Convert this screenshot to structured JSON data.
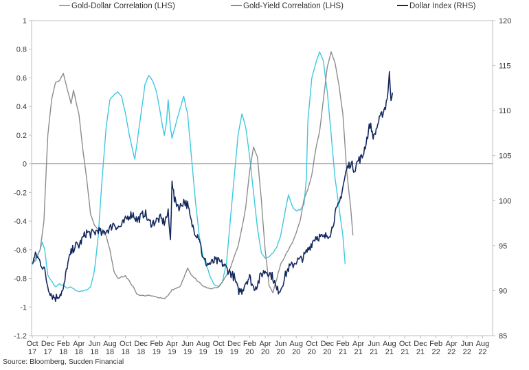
{
  "chart_data": {
    "type": "line",
    "source": "Source: Bloomberg, Sucden Financial",
    "x_labels": [
      [
        "Oct",
        "17"
      ],
      [
        "Dec",
        "17"
      ],
      [
        "Feb",
        "18"
      ],
      [
        "Apr",
        "18"
      ],
      [
        "Jun",
        "18"
      ],
      [
        "Aug",
        "18"
      ],
      [
        "Oct",
        "18"
      ],
      [
        "Dec",
        "18"
      ],
      [
        "Feb",
        "19"
      ],
      [
        "Apr",
        "19"
      ],
      [
        "Jun",
        "19"
      ],
      [
        "Aug",
        "19"
      ],
      [
        "Oct",
        "19"
      ],
      [
        "Dec",
        "19"
      ],
      [
        "Feb",
        "20"
      ],
      [
        "Apr",
        "20"
      ],
      [
        "Jun",
        "20"
      ],
      [
        "Aug",
        "20"
      ],
      [
        "Oct",
        "20"
      ],
      [
        "Dec",
        "20"
      ],
      [
        "Feb",
        "21"
      ],
      [
        "Apr",
        "21"
      ],
      [
        "Jun",
        "21"
      ],
      [
        "Aug",
        "21"
      ],
      [
        "Oct",
        "21"
      ],
      [
        "Dec",
        "21"
      ],
      [
        "Feb",
        "22"
      ],
      [
        "Apr",
        "22"
      ],
      [
        "Jun",
        "22"
      ],
      [
        "Aug",
        "22"
      ]
    ],
    "left_axis": {
      "ylim": [
        -1.2,
        1
      ],
      "ticks": [
        "-1.2",
        "-1",
        "-0.8",
        "-0.6",
        "-0.4",
        "-0.2",
        "0",
        "0.2",
        "0.4",
        "0.6",
        "0.8",
        "1"
      ]
    },
    "right_axis": {
      "ylim": [
        85,
        120
      ],
      "ticks": [
        "85",
        "90",
        "95",
        "100",
        "105",
        "110",
        "115",
        "120"
      ]
    },
    "series": [
      {
        "name": "Gold-Dollar Correlation (LHS)",
        "axis": "left",
        "color": "#3ec8e0",
        "points": [
          [
            0,
            -0.7
          ],
          [
            0.5,
            -0.67
          ],
          [
            1,
            -0.6
          ],
          [
            1.3,
            -0.55
          ],
          [
            1.6,
            -0.6
          ],
          [
            2,
            -0.78
          ],
          [
            2.5,
            -0.82
          ],
          [
            3,
            -0.86
          ],
          [
            3.5,
            -0.84
          ],
          [
            4,
            -0.85
          ],
          [
            4.5,
            -0.87
          ],
          [
            5,
            -0.86
          ],
          [
            5.5,
            -0.88
          ],
          [
            6,
            -0.89
          ],
          [
            6.5,
            -0.89
          ],
          [
            7,
            -0.88
          ],
          [
            7.5,
            -0.86
          ],
          [
            8,
            -0.75
          ],
          [
            8.5,
            -0.5
          ],
          [
            9,
            -0.1
          ],
          [
            9.5,
            0.25
          ],
          [
            10,
            0.45
          ],
          [
            10.5,
            0.48
          ],
          [
            11,
            0.5
          ],
          [
            11.5,
            0.47
          ],
          [
            12,
            0.35
          ],
          [
            12.5,
            0.2
          ],
          [
            13,
            0.08
          ],
          [
            13.2,
            0.03
          ],
          [
            13.5,
            0.15
          ],
          [
            14,
            0.35
          ],
          [
            14.5,
            0.55
          ],
          [
            15,
            0.62
          ],
          [
            15.5,
            0.58
          ],
          [
            16,
            0.5
          ],
          [
            16.5,
            0.35
          ],
          [
            17,
            0.2
          ],
          [
            17.3,
            0.3
          ],
          [
            17.5,
            0.45
          ],
          [
            17.8,
            0.25
          ],
          [
            18,
            0.18
          ],
          [
            18.5,
            0.28
          ],
          [
            19,
            0.38
          ],
          [
            19.5,
            0.47
          ],
          [
            20,
            0.35
          ],
          [
            20.5,
            0.05
          ],
          [
            21,
            -0.25
          ],
          [
            21.5,
            -0.5
          ],
          [
            22,
            -0.65
          ],
          [
            22.5,
            -0.72
          ],
          [
            23,
            -0.8
          ],
          [
            23.5,
            -0.85
          ],
          [
            24,
            -0.86
          ],
          [
            24.5,
            -0.82
          ],
          [
            25,
            -0.7
          ],
          [
            25.5,
            -0.4
          ],
          [
            26,
            -0.1
          ],
          [
            26.5,
            0.2
          ],
          [
            27,
            0.35
          ],
          [
            27.5,
            0.25
          ],
          [
            28,
            0.05
          ],
          [
            28.5,
            -0.2
          ],
          [
            29,
            -0.45
          ],
          [
            29.5,
            -0.62
          ],
          [
            30,
            -0.66
          ],
          [
            30.5,
            -0.65
          ],
          [
            31,
            -0.62
          ],
          [
            31.5,
            -0.58
          ],
          [
            32,
            -0.5
          ],
          [
            32.5,
            -0.35
          ],
          [
            33,
            -0.22
          ],
          [
            33.5,
            -0.3
          ],
          [
            34,
            -0.33
          ],
          [
            34.5,
            -0.32
          ],
          [
            35,
            -0.28
          ],
          [
            35.3,
            -0.1
          ],
          [
            35.5,
            0.3
          ],
          [
            36,
            0.6
          ],
          [
            36.5,
            0.7
          ],
          [
            37,
            0.78
          ],
          [
            37.5,
            0.72
          ],
          [
            38,
            0.5
          ],
          [
            38.5,
            0.2
          ],
          [
            39,
            -0.1
          ],
          [
            39.5,
            -0.3
          ],
          [
            40,
            -0.5
          ],
          [
            40.3,
            -0.7
          ]
        ]
      },
      {
        "name": "Gold-Yield Correlation (LHS)",
        "axis": "left",
        "color": "#8c8c8c",
        "points": [
          [
            0,
            -0.7
          ],
          [
            0.5,
            -0.65
          ],
          [
            1,
            -0.6
          ],
          [
            1.5,
            -0.4
          ],
          [
            2,
            0.2
          ],
          [
            2.5,
            0.45
          ],
          [
            3,
            0.57
          ],
          [
            3.5,
            0.58
          ],
          [
            4,
            0.63
          ],
          [
            4.5,
            0.52
          ],
          [
            5,
            0.42
          ],
          [
            5.3,
            0.51
          ],
          [
            6,
            0.35
          ],
          [
            6.5,
            0.1
          ],
          [
            7,
            -0.1
          ],
          [
            7.5,
            -0.35
          ],
          [
            8,
            -0.43
          ],
          [
            8.5,
            -0.46
          ],
          [
            9,
            -0.48
          ],
          [
            9.5,
            -0.5
          ],
          [
            10,
            -0.6
          ],
          [
            10.5,
            -0.75
          ],
          [
            11,
            -0.8
          ],
          [
            11.5,
            -0.79
          ],
          [
            12,
            -0.78
          ],
          [
            12.5,
            -0.82
          ],
          [
            13,
            -0.86
          ],
          [
            13.5,
            -0.91
          ],
          [
            14,
            -0.92
          ],
          [
            15,
            -0.92
          ],
          [
            16,
            -0.93
          ],
          [
            17,
            -0.94
          ],
          [
            17.5,
            -0.92
          ],
          [
            18,
            -0.88
          ],
          [
            19,
            -0.86
          ],
          [
            19.5,
            -0.8
          ],
          [
            20,
            -0.73
          ],
          [
            20.5,
            -0.78
          ],
          [
            21,
            -0.8
          ],
          [
            21.5,
            -0.83
          ],
          [
            22,
            -0.85
          ],
          [
            22.5,
            -0.87
          ],
          [
            23,
            -0.87
          ],
          [
            24,
            -0.86
          ],
          [
            24.5,
            -0.82
          ],
          [
            25,
            -0.78
          ],
          [
            25.5,
            -0.73
          ],
          [
            26,
            -0.65
          ],
          [
            26.5,
            -0.58
          ],
          [
            27,
            -0.45
          ],
          [
            27.5,
            -0.3
          ],
          [
            28,
            -0.05
          ],
          [
            28.5,
            0.12
          ],
          [
            29,
            0.05
          ],
          [
            29.5,
            -0.25
          ],
          [
            30,
            -0.6
          ],
          [
            30.5,
            -0.85
          ],
          [
            31,
            -0.9
          ],
          [
            31.5,
            -0.8
          ],
          [
            32,
            -0.7
          ],
          [
            32.5,
            -0.65
          ],
          [
            33,
            -0.6
          ],
          [
            33.5,
            -0.55
          ],
          [
            34,
            -0.48
          ],
          [
            34.5,
            -0.4
          ],
          [
            35,
            -0.25
          ],
          [
            35.5,
            -0.18
          ],
          [
            36,
            -0.08
          ],
          [
            36.5,
            0.1
          ],
          [
            37,
            0.22
          ],
          [
            37.5,
            0.45
          ],
          [
            38,
            0.68
          ],
          [
            38.5,
            0.78
          ],
          [
            39,
            0.7
          ],
          [
            39.5,
            0.55
          ],
          [
            40,
            0.35
          ],
          [
            40.5,
            -0.05
          ],
          [
            41,
            -0.3
          ],
          [
            41.3,
            -0.5
          ]
        ]
      },
      {
        "name": "Dollar Index (RHS)",
        "axis": "right",
        "color": "#14285e",
        "points": [
          [
            0,
            93.2
          ],
          [
            0.5,
            94.0
          ],
          [
            1,
            93.2
          ],
          [
            1.5,
            92.5
          ],
          [
            2,
            90.5
          ],
          [
            2.5,
            89.5
          ],
          [
            3,
            89.2
          ],
          [
            3.5,
            89.6
          ],
          [
            4,
            90.0
          ],
          [
            4.5,
            92.8
          ],
          [
            5,
            94.2
          ],
          [
            5.5,
            95.0
          ],
          [
            6,
            95.0
          ],
          [
            6.5,
            95.8
          ],
          [
            7,
            96.5
          ],
          [
            7.5,
            96.3
          ],
          [
            8,
            96.4
          ],
          [
            8.5,
            96.8
          ],
          [
            9,
            96.2
          ],
          [
            9.5,
            96.7
          ],
          [
            10,
            96.9
          ],
          [
            10.5,
            97.5
          ],
          [
            11,
            97.0
          ],
          [
            11.5,
            97.2
          ],
          [
            12,
            97.8
          ],
          [
            12.5,
            98.4
          ],
          [
            13,
            98.5
          ],
          [
            13.5,
            97.8
          ],
          [
            14,
            98.2
          ],
          [
            14.5,
            98.7
          ],
          [
            15,
            97.6
          ],
          [
            15.5,
            97.5
          ],
          [
            16,
            97.8
          ],
          [
            16.5,
            98.0
          ],
          [
            17,
            97.6
          ],
          [
            17.5,
            98.6
          ],
          [
            17.8,
            95.5
          ],
          [
            18,
            102.5
          ],
          [
            18.3,
            100.0
          ],
          [
            18.8,
            99.5
          ],
          [
            19,
            99.2
          ],
          [
            19.5,
            100.0
          ],
          [
            20,
            99.5
          ],
          [
            20.5,
            97.5
          ],
          [
            21,
            96.5
          ],
          [
            21.5,
            96.0
          ],
          [
            22,
            93.5
          ],
          [
            22.5,
            93.0
          ],
          [
            23,
            93.0
          ],
          [
            23.5,
            93.3
          ],
          [
            24,
            93.2
          ],
          [
            24.5,
            93.0
          ],
          [
            25,
            92.5
          ],
          [
            25.5,
            92.0
          ],
          [
            26,
            91.5
          ],
          [
            26.5,
            90.0
          ],
          [
            27,
            90.0
          ],
          [
            27.5,
            91.0
          ],
          [
            28,
            91.5
          ],
          [
            28.5,
            90.3
          ],
          [
            29,
            90.7
          ],
          [
            29.5,
            91.8
          ],
          [
            30,
            92.2
          ],
          [
            30.5,
            92.0
          ],
          [
            31,
            91.5
          ],
          [
            31.5,
            90.0
          ],
          [
            32,
            90.2
          ],
          [
            32.5,
            91.5
          ],
          [
            33,
            92.5
          ],
          [
            33.5,
            92.8
          ],
          [
            34,
            93.3
          ],
          [
            34.5,
            93.4
          ],
          [
            35,
            93.8
          ],
          [
            35.5,
            94.5
          ],
          [
            36,
            95.3
          ],
          [
            36.5,
            96.0
          ],
          [
            37,
            96.0
          ],
          [
            37.5,
            95.8
          ],
          [
            38,
            96.2
          ],
          [
            38.5,
            96.5
          ],
          [
            39,
            98.5
          ],
          [
            39.5,
            99.5
          ],
          [
            40,
            101.5
          ],
          [
            40.5,
            103.5
          ],
          [
            41,
            104.2
          ],
          [
            41.5,
            103.5
          ],
          [
            42,
            104.5
          ],
          [
            42.5,
            104.8
          ],
          [
            43,
            106.5
          ],
          [
            43.5,
            108.5
          ],
          [
            44,
            107.0
          ],
          [
            44.5,
            108.5
          ],
          [
            45,
            109.5
          ],
          [
            45.5,
            110.5
          ],
          [
            45.8,
            112.0
          ],
          [
            46,
            114.0
          ],
          [
            46.2,
            111.5
          ],
          [
            46.4,
            112.0
          ]
        ]
      }
    ]
  }
}
